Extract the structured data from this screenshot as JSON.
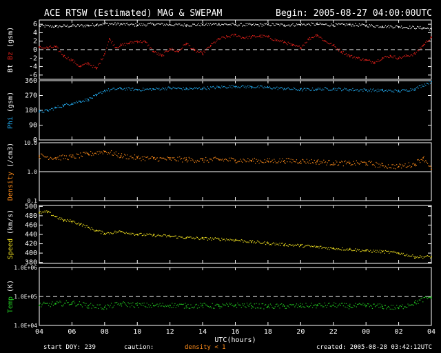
{
  "title": "ACE RTSW (Estimated) MAG & SWEPAM",
  "begin": "Begin: 2005-08-27 04:00:00UTC",
  "footer": {
    "start_doy": "start DOY: 239",
    "caution": "caution:",
    "density_note": "density < 1",
    "created": "created: 2005-08-28 03:42:12UTC"
  },
  "colors": {
    "bt": "#ffffff",
    "bz": "#e0201a",
    "phi": "#22aaee",
    "density": "#ff8c1a",
    "speed": "#f0e020",
    "temp": "#22cc22",
    "axis": "#ffffff"
  },
  "chart_data": [
    {
      "type": "scatter",
      "panel": "mag",
      "ylabel_parts": [
        "Bt",
        "Bz",
        "(gsm)"
      ],
      "yticks": [
        "6",
        "4",
        "2",
        "0",
        "-2",
        "-4",
        "-6"
      ],
      "ylim": [
        -7,
        7
      ],
      "zero_line": true,
      "series": [
        {
          "name": "Bt",
          "x": [
            4,
            5,
            6,
            7,
            7.5,
            8,
            9,
            10,
            11,
            12,
            13,
            14,
            15,
            16,
            17,
            18,
            19,
            20,
            21,
            22,
            23,
            24,
            25,
            26,
            27.5,
            28
          ],
          "values": [
            5.6,
            5.5,
            5.6,
            5.7,
            5.9,
            6.1,
            6.0,
            5.8,
            6.0,
            5.9,
            5.8,
            5.9,
            6.0,
            5.9,
            5.8,
            5.9,
            5.8,
            5.9,
            6.0,
            5.8,
            5.9,
            5.7,
            5.5,
            5.4,
            5.1,
            4.9
          ]
        },
        {
          "name": "Bz",
          "x": [
            4,
            4.5,
            5,
            5.5,
            6,
            6.5,
            7,
            7.5,
            8,
            8.3,
            8.7,
            9,
            9.5,
            10,
            10.5,
            11,
            11.5,
            12,
            12.5,
            13,
            13.5,
            14,
            14.5,
            15,
            15.5,
            16,
            16.5,
            17,
            17.5,
            18,
            18.5,
            19,
            19.5,
            20,
            20.5,
            21,
            21.5,
            22,
            22.5,
            23,
            23.5,
            24,
            24.5,
            25,
            25.5,
            26,
            26.5,
            27,
            27.5,
            28
          ],
          "values": [
            0.5,
            0.4,
            0.7,
            -1.5,
            -2.5,
            -4.0,
            -3.2,
            -4.5,
            -1.0,
            2.5,
            0.5,
            1.0,
            1.5,
            2.0,
            1.8,
            -0.5,
            -1.5,
            0.2,
            -0.5,
            1.5,
            -0.2,
            -1.0,
            1.0,
            2.5,
            3.0,
            3.5,
            2.8,
            3.0,
            3.2,
            3.0,
            2.2,
            1.8,
            1.0,
            0.5,
            2.5,
            3.5,
            2.0,
            1.0,
            -0.5,
            -1.5,
            -2.0,
            -2.5,
            -3.0,
            -2.0,
            -1.5,
            -2.0,
            -1.5,
            -1.0,
            1.0,
            3.0
          ]
        }
      ]
    },
    {
      "type": "scatter",
      "panel": "phi",
      "ylabel_parts": [
        "Phi",
        "(gsm)"
      ],
      "yticks": [
        "360",
        "270",
        "180",
        "90",
        "0"
      ],
      "ylim": [
        0,
        360
      ],
      "series": [
        {
          "name": "Phi",
          "x": [
            4,
            4.5,
            5,
            5.5,
            6,
            6.5,
            7,
            7.5,
            8,
            9,
            10,
            11,
            12,
            13,
            14,
            15,
            16,
            17,
            18,
            19,
            20,
            21,
            22,
            23,
            24,
            25,
            26,
            27,
            28
          ],
          "values": [
            170,
            178,
            195,
            210,
            222,
            235,
            245,
            270,
            300,
            312,
            305,
            308,
            315,
            310,
            313,
            320,
            325,
            322,
            318,
            312,
            305,
            308,
            310,
            305,
            303,
            300,
            296,
            310,
            355
          ]
        }
      ]
    },
    {
      "type": "scatter",
      "panel": "density",
      "ylabel_parts": [
        "Density",
        "(/cm3)"
      ],
      "yscale": "log",
      "yticks": [
        "10.0",
        "1.0",
        "0.1"
      ],
      "ylim": [
        0.1,
        10
      ],
      "series": [
        {
          "name": "Density",
          "x": [
            4,
            5,
            6,
            7,
            8,
            9,
            10,
            11,
            12,
            13,
            14,
            15,
            16,
            17,
            18,
            19,
            20,
            21,
            22,
            23,
            24,
            25,
            26,
            27,
            27.5,
            28
          ],
          "values": [
            3.5,
            3.0,
            3.2,
            4.0,
            5.0,
            3.5,
            3.0,
            2.8,
            2.7,
            2.6,
            2.5,
            2.6,
            2.5,
            2.4,
            2.3,
            2.4,
            2.3,
            2.2,
            2.0,
            1.9,
            2.0,
            1.6,
            1.5,
            1.8,
            3.0,
            1.2
          ]
        }
      ]
    },
    {
      "type": "scatter",
      "panel": "speed",
      "ylabel_parts": [
        "Speed",
        "(km/s)"
      ],
      "yticks": [
        "500",
        "480",
        "460",
        "440",
        "420",
        "400",
        "380"
      ],
      "ylim": [
        378,
        502
      ],
      "series": [
        {
          "name": "Speed",
          "x": [
            4,
            4.5,
            5,
            5.5,
            6,
            6.5,
            7,
            7.5,
            8,
            9,
            10,
            11,
            12,
            13,
            14,
            15,
            16,
            17,
            18,
            19,
            20,
            21,
            22,
            23,
            24,
            25,
            26,
            27,
            28
          ],
          "values": [
            486,
            488,
            478,
            470,
            468,
            462,
            455,
            448,
            442,
            446,
            440,
            438,
            436,
            433,
            431,
            430,
            428,
            424,
            421,
            418,
            416,
            413,
            410,
            408,
            405,
            403,
            400,
            392,
            392
          ]
        }
      ]
    },
    {
      "type": "scatter",
      "panel": "temp",
      "ylabel_parts": [
        "Temp",
        "(K)"
      ],
      "yscale": "log",
      "yticks": [
        "1.0E+06",
        "1.0E+05",
        "1.0E+04"
      ],
      "ylim": [
        10000,
        1000000
      ],
      "dashed_ref": 100000,
      "series": [
        {
          "name": "Temp",
          "x": [
            4,
            5,
            6,
            7,
            8,
            9,
            10,
            11,
            12,
            13,
            14,
            15,
            16,
            17,
            18,
            19,
            20,
            21,
            22,
            23,
            24,
            25,
            26,
            27,
            28
          ],
          "values": [
            50000,
            55000,
            60000,
            48000,
            42000,
            55000,
            50000,
            48000,
            50000,
            47000,
            48000,
            46000,
            50000,
            48000,
            45000,
            46000,
            47000,
            48000,
            50000,
            46000,
            48000,
            45000,
            40000,
            60000,
            95000
          ]
        }
      ]
    }
  ],
  "xaxis": {
    "label": "UTC(hours)",
    "ticks": [
      "04",
      "06",
      "08",
      "10",
      "12",
      "14",
      "16",
      "18",
      "20",
      "22",
      "00",
      "02",
      "04"
    ],
    "range": [
      4,
      28
    ]
  }
}
